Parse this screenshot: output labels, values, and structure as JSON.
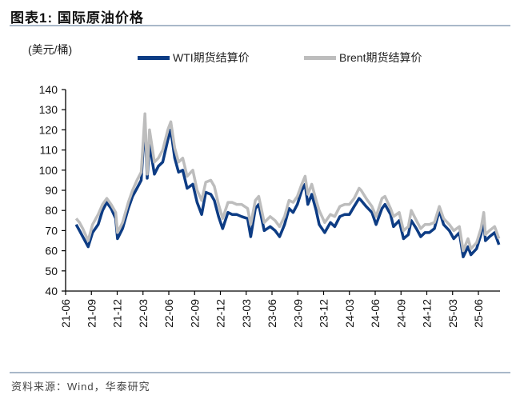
{
  "title": "图表1:   国际原油价格",
  "source": "资料来源：Wind，华泰研究",
  "chart_data": {
    "type": "line",
    "title": "国际原油价格",
    "ylabel": "(美元/桶)",
    "ylim": [
      40,
      140
    ],
    "yticks": [
      "140",
      "130",
      "120",
      "110",
      "100",
      "90",
      "80",
      "70",
      "60",
      "50",
      "40"
    ],
    "xticks": [
      "21-06",
      "21-09",
      "21-12",
      "22-03",
      "22-06",
      "22-09",
      "22-12",
      "23-03",
      "23-06",
      "23-09",
      "23-12",
      "24-03",
      "24-06",
      "24-09",
      "24-12",
      "25-03",
      "25-06"
    ],
    "legend_position": "top",
    "dates": [
      "2021-07-08",
      "2021-07-20",
      "2021-08-01",
      "2021-08-20",
      "2021-09-05",
      "2021-09-25",
      "2021-10-10",
      "2021-10-25",
      "2021-11-10",
      "2021-11-26",
      "2021-12-02",
      "2021-12-20",
      "2022-01-10",
      "2022-01-25",
      "2022-02-10",
      "2022-02-25",
      "2022-03-08",
      "2022-03-16",
      "2022-03-24",
      "2022-04-11",
      "2022-04-25",
      "2022-05-10",
      "2022-05-28",
      "2022-06-08",
      "2022-06-22",
      "2022-07-05",
      "2022-07-20",
      "2022-08-05",
      "2022-08-25",
      "2022-09-10",
      "2022-09-26",
      "2022-10-10",
      "2022-10-28",
      "2022-11-10",
      "2022-11-25",
      "2022-12-09",
      "2022-12-28",
      "2023-01-12",
      "2023-01-28",
      "2023-02-15",
      "2023-03-06",
      "2023-03-17",
      "2023-04-03",
      "2023-04-15",
      "2023-05-04",
      "2023-05-25",
      "2023-06-12",
      "2023-06-28",
      "2023-07-15",
      "2023-07-31",
      "2023-08-15",
      "2023-08-30",
      "2023-09-15",
      "2023-09-27",
      "2023-10-06",
      "2023-10-20",
      "2023-11-05",
      "2023-11-16",
      "2023-12-05",
      "2023-12-25",
      "2024-01-10",
      "2024-01-28",
      "2024-02-15",
      "2024-03-01",
      "2024-03-18",
      "2024-04-05",
      "2024-04-12",
      "2024-04-30",
      "2024-05-20",
      "2024-06-04",
      "2024-06-25",
      "2024-07-05",
      "2024-07-25",
      "2024-08-05",
      "2024-08-25",
      "2024-09-10",
      "2024-09-27",
      "2024-10-07",
      "2024-10-25",
      "2024-11-10",
      "2024-11-25",
      "2024-12-10",
      "2024-12-28",
      "2025-01-15",
      "2025-01-30",
      "2025-02-20",
      "2025-03-05",
      "2025-03-25",
      "2025-04-08",
      "2025-04-25",
      "2025-05-05",
      "2025-05-25",
      "2025-06-10",
      "2025-06-20",
      "2025-06-26",
      "2025-07-10",
      "2025-07-28",
      "2025-08-13"
    ],
    "series": [
      {
        "name": "WTI期货结算价",
        "color": "#0d3c84",
        "values": [
          73,
          70,
          67,
          62,
          69,
          73,
          80,
          84,
          81,
          76,
          66,
          71,
          81,
          87,
          91,
          95,
          124,
          96,
          113,
          98,
          102,
          104,
          115,
          120,
          106,
          99,
          100,
          91,
          93,
          84,
          78,
          89,
          88,
          85,
          77,
          71,
          79,
          78,
          78,
          77,
          76,
          67,
          81,
          83,
          70,
          72,
          70,
          67,
          73,
          81,
          79,
          83,
          90,
          93,
          83,
          88,
          80,
          73,
          69,
          74,
          72,
          77,
          78,
          78,
          82,
          86,
          85,
          82,
          79,
          73,
          81,
          83,
          78,
          72,
          75,
          66,
          68,
          75,
          71,
          67,
          69,
          69,
          71,
          80,
          73,
          70,
          66,
          69,
          57,
          62,
          58,
          61,
          68,
          75,
          65,
          67,
          69,
          63
        ]
      },
      {
        "name": "Brent期货结算价",
        "color": "#bdbdbd",
        "values": [
          76,
          74,
          71,
          65,
          73,
          78,
          83,
          86,
          83,
          79,
          69,
          74,
          84,
          90,
          95,
          99,
          128,
          98,
          120,
          104,
          106,
          110,
          120,
          124,
          111,
          104,
          106,
          97,
          100,
          90,
          85,
          94,
          95,
          92,
          83,
          76,
          84,
          84,
          83,
          83,
          81,
          73,
          85,
          87,
          74,
          77,
          75,
          72,
          77,
          85,
          84,
          87,
          93,
          97,
          88,
          93,
          85,
          80,
          74,
          78,
          77,
          82,
          83,
          83,
          86,
          91,
          90,
          86,
          82,
          77,
          86,
          87,
          81,
          77,
          79,
          70,
          72,
          80,
          75,
          71,
          73,
          73,
          74,
          82,
          76,
          73,
          70,
          72,
          60,
          66,
          61,
          64,
          71,
          79,
          68,
          70,
          72,
          66
        ]
      }
    ]
  }
}
